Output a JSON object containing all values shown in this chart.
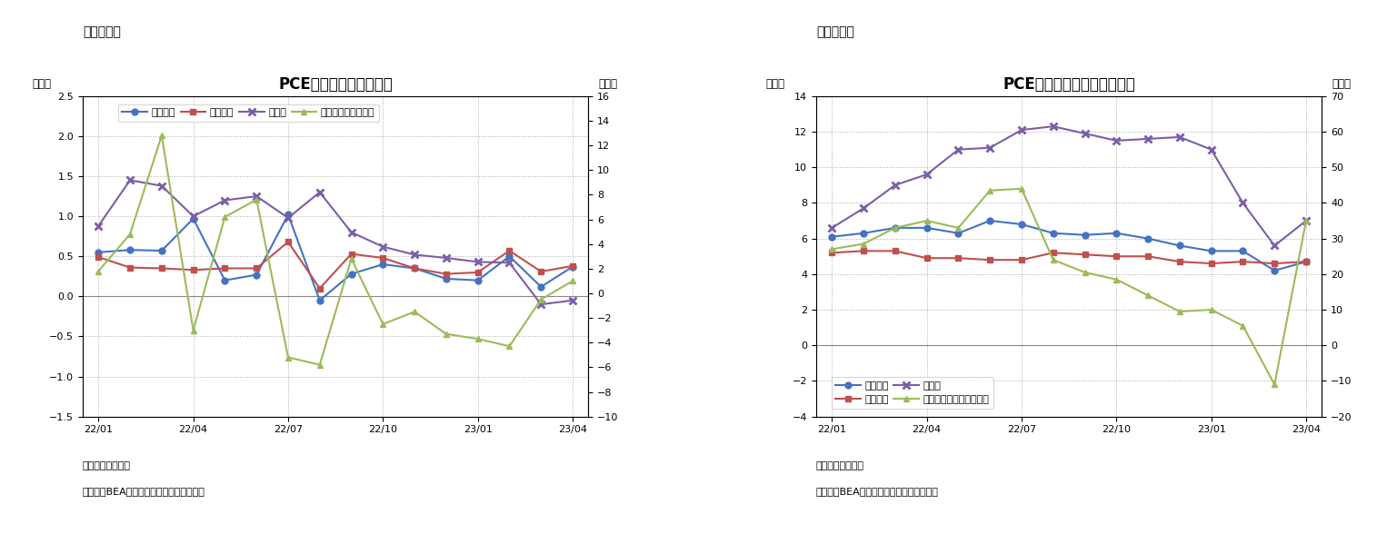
{
  "chart6": {
    "title": "PCE価格指数（前月比）",
    "note1": "（注）季節調整済",
    "note2": "（資料）BEAよりニッセイ基礎研究所作成",
    "ylabel_left": "（％）",
    "ylabel_right": "（％）",
    "ylim_left": [
      -1.5,
      2.5
    ],
    "ylim_right": [
      -10,
      16
    ],
    "yticks_left": [
      -1.5,
      -1.0,
      -0.5,
      0.0,
      0.5,
      1.0,
      1.5,
      2.0,
      2.5
    ],
    "yticks_right": [
      -10,
      -8,
      -6,
      -4,
      -2,
      0,
      2,
      4,
      6,
      8,
      10,
      12,
      14,
      16
    ],
    "xtick_labels": [
      "22/01",
      "22/04",
      "22/07",
      "22/10",
      "23/01",
      "23/04"
    ],
    "xtick_positions": [
      0,
      3,
      6,
      9,
      12,
      15
    ],
    "n_points": 16,
    "total": [
      0.55,
      0.58,
      0.57,
      0.97,
      0.2,
      0.27,
      1.02,
      -0.05,
      0.28,
      0.4,
      0.35,
      0.22,
      0.2,
      0.5,
      0.12,
      0.37
    ],
    "core": [
      0.49,
      0.36,
      0.35,
      0.33,
      0.35,
      0.35,
      0.68,
      0.1,
      0.53,
      0.48,
      0.35,
      0.28,
      0.3,
      0.57,
      0.31,
      0.38
    ],
    "food": [
      0.88,
      1.45,
      1.38,
      1.0,
      1.2,
      1.25,
      0.98,
      1.3,
      0.8,
      0.62,
      0.52,
      0.48,
      0.43,
      0.42,
      -0.1,
      -0.05
    ],
    "energy": [
      1.8,
      4.8,
      12.8,
      -3.0,
      6.2,
      7.6,
      -5.2,
      -5.8,
      2.8,
      -2.5,
      -1.5,
      -3.3,
      -3.7,
      -4.3,
      -0.5,
      1.0
    ],
    "total_color": "#4472C4",
    "core_color": "#C0504D",
    "food_color": "#7B5EA7",
    "energy_color": "#9BBB59",
    "total_label": "総合指数",
    "core_label": "コア指数",
    "food_label": "食料品",
    "energy_label": "エネルギー（右軸）"
  },
  "chart7": {
    "title": "PCE価格指数（前年同月比）",
    "note1": "（注）季節調整済",
    "note2": "（資料）BEAよりニッセイ基礎研究所作成",
    "ylabel_left": "（％）",
    "ylabel_right": "（％）",
    "ylim_left": [
      -4,
      14
    ],
    "ylim_right": [
      -20,
      70
    ],
    "yticks_left": [
      -4,
      -2,
      0,
      2,
      4,
      6,
      8,
      10,
      12,
      14
    ],
    "yticks_right": [
      -20,
      -10,
      0,
      10,
      20,
      30,
      40,
      50,
      60,
      70
    ],
    "xtick_labels": [
      "22/01",
      "22/04",
      "22/07",
      "22/10",
      "23/01",
      "23/04"
    ],
    "xtick_positions": [
      0,
      3,
      6,
      9,
      12,
      15
    ],
    "n_points": 16,
    "total": [
      6.1,
      6.3,
      6.6,
      6.6,
      6.3,
      7.0,
      6.8,
      6.3,
      6.2,
      6.3,
      6.0,
      5.6,
      5.3,
      5.3,
      4.2,
      4.7
    ],
    "core": [
      5.2,
      5.3,
      5.3,
      4.9,
      4.9,
      4.8,
      4.8,
      5.2,
      5.1,
      5.0,
      5.0,
      4.7,
      4.6,
      4.7,
      4.6,
      4.7
    ],
    "food": [
      6.6,
      7.7,
      9.0,
      9.6,
      11.0,
      11.1,
      12.1,
      12.3,
      11.9,
      11.5,
      11.6,
      11.7,
      11.0,
      8.0,
      5.6,
      7.0
    ],
    "energy": [
      27.0,
      28.5,
      33.0,
      35.0,
      33.0,
      43.5,
      44.0,
      24.0,
      20.5,
      18.5,
      14.0,
      9.5,
      10.0,
      5.5,
      -11.0,
      35.0
    ],
    "total_color": "#4472C4",
    "core_color": "#C0504D",
    "food_color": "#7B5EA7",
    "energy_color": "#9BBB59",
    "total_label": "総合指数",
    "core_label": "コア指数",
    "food_label": "食料品",
    "energy_label": "エネルギー関連（右軸）"
  },
  "fig_label6": "（図表６）",
  "fig_label7": "（図表７）",
  "bg_color": "#FFFFFF",
  "grid_color": "#AAAAAA",
  "title_fontsize": 12,
  "legend_fontsize": 8,
  "tick_fontsize": 8,
  "label_fontsize": 8.5,
  "note_fontsize": 8,
  "figlabel_fontsize": 10
}
